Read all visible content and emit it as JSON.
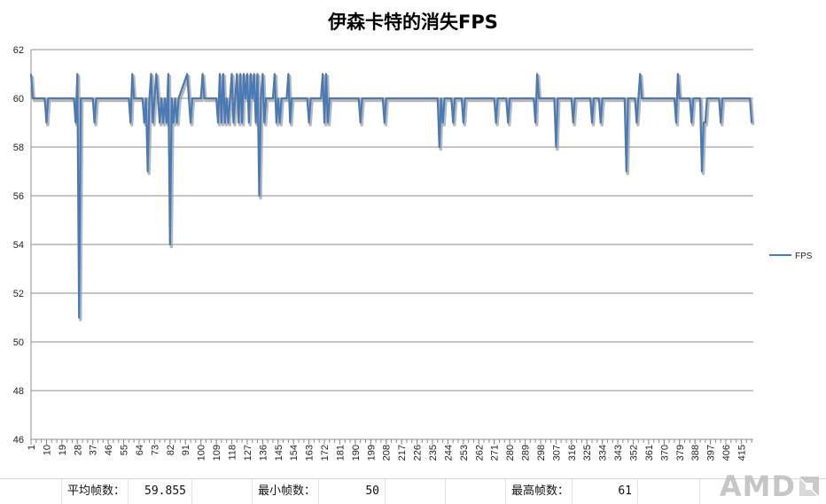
{
  "chart_data": {
    "type": "line",
    "title": "伊森卡特的消失FPS",
    "xlabel": "",
    "ylabel": "",
    "ylim": [
      46,
      62
    ],
    "yticks": [
      46,
      48,
      50,
      52,
      54,
      56,
      58,
      60,
      62
    ],
    "xlim": [
      1,
      422
    ],
    "xtick_start": 1,
    "xtick_step": 9,
    "xtick_count": 47,
    "grid": true,
    "legend": "right",
    "series": [
      {
        "name": "FPS",
        "color": "#4a7ab5",
        "baseline": 60,
        "points": [
          [
            1,
            61
          ],
          [
            2,
            60
          ],
          [
            9,
            60
          ],
          [
            10,
            59
          ],
          [
            11,
            60
          ],
          [
            26,
            60
          ],
          [
            27,
            59
          ],
          [
            28,
            61
          ],
          [
            29,
            51
          ],
          [
            30,
            60
          ],
          [
            37,
            60
          ],
          [
            38,
            59
          ],
          [
            39,
            60
          ],
          [
            58,
            60
          ],
          [
            59,
            59
          ],
          [
            60,
            61
          ],
          [
            61,
            60
          ],
          [
            66,
            60
          ],
          [
            67,
            59
          ],
          [
            68,
            60
          ],
          [
            69,
            57
          ],
          [
            70,
            60
          ],
          [
            71,
            61
          ],
          [
            72,
            59
          ],
          [
            73,
            60
          ],
          [
            74,
            61
          ],
          [
            75,
            60
          ],
          [
            76,
            59
          ],
          [
            77,
            60
          ],
          [
            78,
            59
          ],
          [
            79,
            60
          ],
          [
            80,
            59
          ],
          [
            81,
            61
          ],
          [
            82,
            54
          ],
          [
            83,
            60
          ],
          [
            84,
            59
          ],
          [
            85,
            60
          ],
          [
            86,
            59
          ],
          [
            87,
            60
          ],
          [
            92,
            61
          ],
          [
            93,
            60
          ],
          [
            94,
            59
          ],
          [
            95,
            60
          ],
          [
            100,
            60
          ],
          [
            101,
            61
          ],
          [
            102,
            60
          ],
          [
            109,
            60
          ],
          [
            110,
            59
          ],
          [
            111,
            61
          ],
          [
            112,
            59
          ],
          [
            113,
            61
          ],
          [
            114,
            59
          ],
          [
            115,
            60
          ],
          [
            116,
            59
          ],
          [
            117,
            60
          ],
          [
            118,
            61
          ],
          [
            119,
            59
          ],
          [
            120,
            60
          ],
          [
            121,
            61
          ],
          [
            122,
            59
          ],
          [
            123,
            61
          ],
          [
            124,
            59
          ],
          [
            125,
            61
          ],
          [
            126,
            60
          ],
          [
            127,
            61
          ],
          [
            128,
            59
          ],
          [
            129,
            61
          ],
          [
            130,
            60
          ],
          [
            131,
            61
          ],
          [
            132,
            59
          ],
          [
            133,
            61
          ],
          [
            134,
            56
          ],
          [
            135,
            60
          ],
          [
            136,
            61
          ],
          [
            137,
            59
          ],
          [
            138,
            60
          ],
          [
            142,
            60
          ],
          [
            143,
            61
          ],
          [
            144,
            59
          ],
          [
            145,
            60
          ],
          [
            146,
            59
          ],
          [
            147,
            60
          ],
          [
            150,
            60
          ],
          [
            151,
            61
          ],
          [
            152,
            59
          ],
          [
            153,
            60
          ],
          [
            162,
            60
          ],
          [
            163,
            59
          ],
          [
            164,
            60
          ],
          [
            170,
            60
          ],
          [
            171,
            61
          ],
          [
            172,
            59
          ],
          [
            173,
            61
          ],
          [
            174,
            59
          ],
          [
            175,
            60
          ],
          [
            192,
            60
          ],
          [
            193,
            59
          ],
          [
            194,
            60
          ],
          [
            206,
            60
          ],
          [
            207,
            59
          ],
          [
            208,
            60
          ],
          [
            238,
            60
          ],
          [
            239,
            58
          ],
          [
            240,
            60
          ],
          [
            241,
            59
          ],
          [
            242,
            60
          ],
          [
            246,
            60
          ],
          [
            247,
            59
          ],
          [
            248,
            60
          ],
          [
            252,
            60
          ],
          [
            253,
            59
          ],
          [
            254,
            60
          ],
          [
            271,
            60
          ],
          [
            272,
            59
          ],
          [
            273,
            60
          ],
          [
            278,
            60
          ],
          [
            279,
            59
          ],
          [
            280,
            60
          ],
          [
            294,
            60
          ],
          [
            295,
            59
          ],
          [
            296,
            61
          ],
          [
            297,
            60
          ],
          [
            306,
            60
          ],
          [
            307,
            58
          ],
          [
            308,
            60
          ],
          [
            316,
            60
          ],
          [
            317,
            59
          ],
          [
            318,
            60
          ],
          [
            327,
            60
          ],
          [
            328,
            59
          ],
          [
            329,
            60
          ],
          [
            332,
            60
          ],
          [
            333,
            59
          ],
          [
            334,
            60
          ],
          [
            347,
            60
          ],
          [
            348,
            57
          ],
          [
            349,
            60
          ],
          [
            353,
            60
          ],
          [
            354,
            59
          ],
          [
            355,
            60
          ],
          [
            356,
            61
          ],
          [
            357,
            60
          ],
          [
            376,
            60
          ],
          [
            377,
            59
          ],
          [
            378,
            61
          ],
          [
            379,
            60
          ],
          [
            385,
            60
          ],
          [
            386,
            59
          ],
          [
            387,
            60
          ],
          [
            391,
            60
          ],
          [
            392,
            57
          ],
          [
            393,
            59
          ],
          [
            394,
            59
          ],
          [
            395,
            60
          ],
          [
            402,
            60
          ],
          [
            403,
            59
          ],
          [
            404,
            60
          ],
          [
            420,
            60
          ],
          [
            421,
            59
          ]
        ]
      }
    ]
  },
  "stats": {
    "avg_label": "平均帧数：",
    "avg_value": "59.855",
    "min_label": "最小帧数：",
    "min_value": "50",
    "max_label": "最高帧数：",
    "max_value": "61"
  },
  "brand": {
    "text": "AMD"
  }
}
